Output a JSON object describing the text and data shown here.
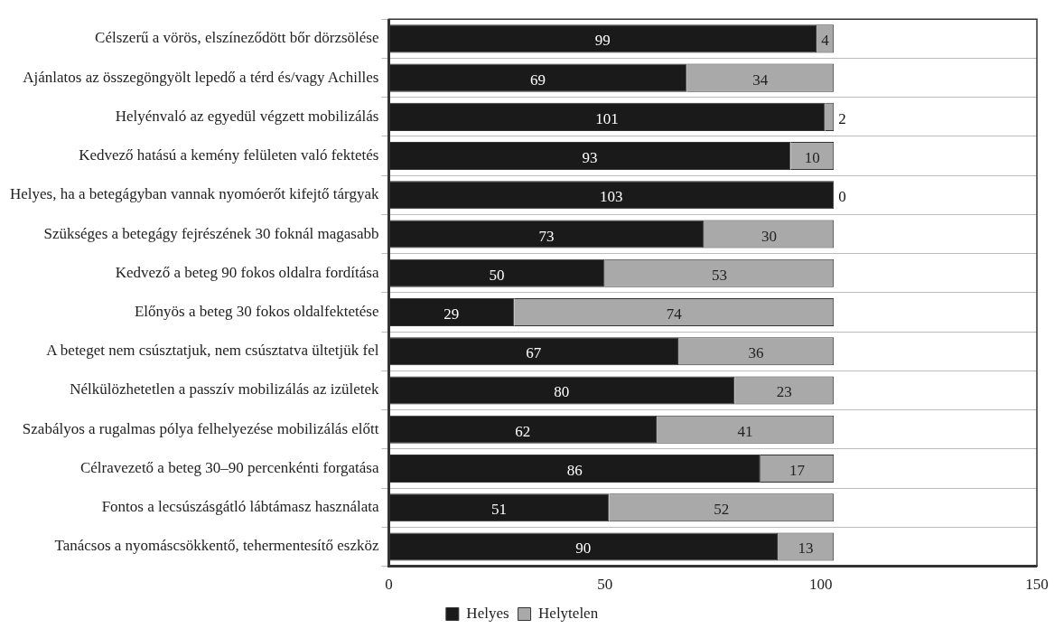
{
  "chart_data": {
    "type": "bar",
    "orientation": "horizontal",
    "stacked": true,
    "data_labels": true,
    "grid": "y",
    "legend": "bottom",
    "categories": [
      "Célszerű a vörös, elszíneződött bőr dörzsölése",
      "Ajánlatos az összegöngyölt lepedő a térd és/vagy Achilles",
      "Helyénvaló az egyedül végzett mobilizálás",
      "Kedvező hatású a kemény felületen való fektetés",
      "Helyes, ha a betegágyban vannak nyomóerőt kifejtő tárgyak",
      "Szükséges a betegágy fejrészének 30 foknál magasabb",
      "Kedvező a beteg 90 fokos oldalra fordítása",
      "Előnyös a beteg 30 fokos oldalfektetése",
      "A beteget nem csúsztatjuk, nem csúsztatva ültetjük fel",
      "Nélkülözhetetlen a passzív mobilizálás az izületek",
      "Szabályos a rugalmas pólya felhelyezése mobilizálás előtt",
      "Célravezető a beteg 30–90 percenkénti forgatása",
      "Fontos a lecsúszásgátló lábtámasz használata",
      "Tanácsos a nyomáscsökkentő, tehermentesítő eszköz"
    ],
    "series": [
      {
        "name": "Helyes",
        "color": "#1a1a1a",
        "values": [
          99,
          69,
          101,
          93,
          103,
          73,
          50,
          29,
          67,
          80,
          62,
          86,
          51,
          90
        ]
      },
      {
        "name": "Helytelen",
        "color": "#a9a9a9",
        "values": [
          4,
          34,
          2,
          10,
          0,
          30,
          53,
          74,
          36,
          23,
          41,
          17,
          52,
          13
        ]
      }
    ],
    "xlim": [
      0,
      150
    ],
    "xticks": [
      0,
      50,
      100,
      150
    ]
  }
}
